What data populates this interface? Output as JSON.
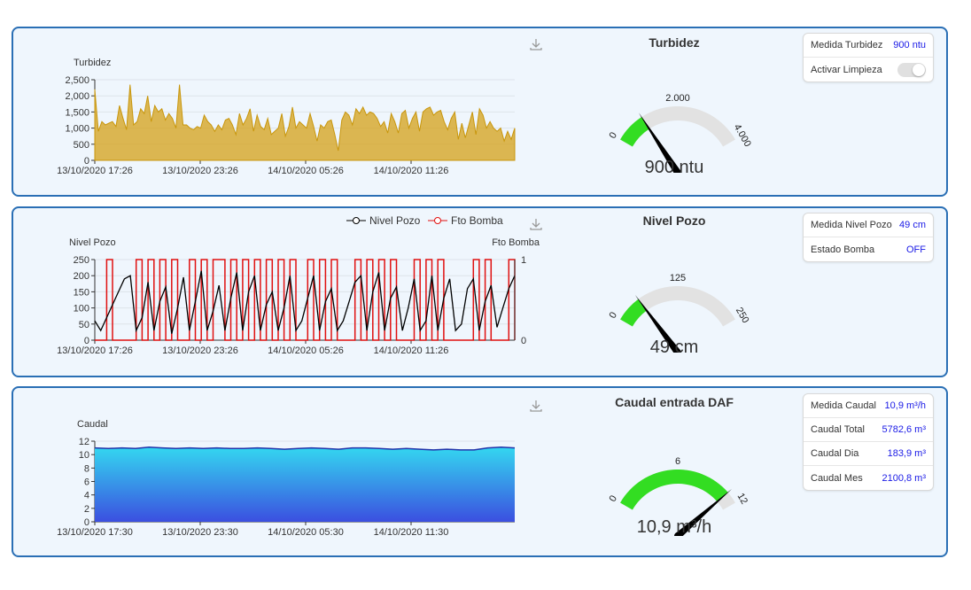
{
  "panels": [
    {
      "chart_data": {
        "type": "area",
        "title": "",
        "ylabel": "Turbidez",
        "ylim": [
          0,
          2500
        ],
        "yticks": [
          "0",
          "500",
          "1,000",
          "1,500",
          "2,000",
          "2,500"
        ],
        "xticks": [
          "13/10/2020 17:26",
          "13/10/2020 23:26",
          "14/10/2020 05:26",
          "14/10/2020 11:26"
        ],
        "series": [
          {
            "name": "Turbidez",
            "color": "#d4a017",
            "values": [
              2200,
              900,
              1200,
              1100,
              1150,
              1200,
              1050,
              1700,
              1300,
              950,
              2350,
              1100,
              1200,
              1600,
              1450,
              2000,
              1200,
              1700,
              1500,
              1600,
              1250,
              1450,
              1300,
              1000,
              2350,
              1100,
              1100,
              1000,
              950,
              1050,
              1000,
              1400,
              1200,
              1100,
              900,
              1100,
              950,
              1250,
              1300,
              1100,
              800,
              1450,
              1100,
              1300,
              1600,
              900,
              1400,
              1050,
              950,
              1300,
              800,
              900,
              1000,
              1450,
              750,
              1050,
              1650,
              1000,
              1200,
              1100,
              1000,
              1450,
              1050,
              600,
              1100,
              1000,
              1200,
              1250,
              800,
              300,
              1250,
              1500,
              1400,
              1100,
              1600,
              1450,
              1650,
              1400,
              1500,
              1450,
              1300,
              1050,
              1200,
              850,
              1450,
              1200,
              850,
              1450,
              1550,
              1000,
              1300,
              1500,
              900,
              1500,
              1600,
              1650,
              1400,
              1500,
              1550,
              1200,
              950,
              1300,
              1500,
              650,
              1150,
              700,
              1100,
              1500,
              800,
              1600,
              1400,
              1000,
              1200,
              1000,
              900,
              1000,
              600,
              900,
              650,
              1000
            ]
          }
        ]
      },
      "gauge": {
        "title": "Turbidez",
        "min_label": "0",
        "mid_label": "2.000",
        "max_label": "4.000",
        "value": 900,
        "min": 0,
        "max": 4000,
        "value_text": "900 ntu"
      },
      "info": [
        {
          "label": "Medida Turbidez",
          "value": "900 ntu",
          "kind": "text"
        },
        {
          "label": "Activar Limpieza",
          "value": "",
          "kind": "toggle"
        }
      ]
    },
    {
      "chart_data": {
        "type": "line",
        "title": "",
        "ylabel": "Nivel Pozo",
        "ylabel_right": "Fto Bomba",
        "ylim": [
          0,
          250
        ],
        "yticks": [
          "0",
          "50",
          "100",
          "150",
          "200",
          "250"
        ],
        "yticks_right": [
          "0",
          "1"
        ],
        "xticks": [
          "13/10/2020 17:26",
          "13/10/2020 23:26",
          "14/10/2020 05:26",
          "14/10/2020 11:26"
        ],
        "legend": "top-right",
        "series": [
          {
            "name": "Nivel Pozo",
            "color": "#000000",
            "values": [
              60,
              30,
              70,
              110,
              150,
              190,
              200,
              30,
              70,
              180,
              30,
              120,
              165,
              20,
              100,
              195,
              30,
              120,
              215,
              30,
              90,
              170,
              30,
              130,
              210,
              30,
              150,
              200,
              30,
              110,
              150,
              30,
              100,
              200,
              30,
              60,
              130,
              200,
              30,
              120,
              160,
              30,
              60,
              120,
              180,
              200,
              30,
              150,
              210,
              30,
              130,
              165,
              30,
              100,
              190,
              30,
              60,
              200,
              30,
              130,
              190,
              30,
              50,
              160,
              190,
              30,
              120,
              170,
              40,
              100,
              160,
              200
            ]
          },
          {
            "name": "Fto Bomba",
            "color": "#e01010",
            "values": [
              0,
              0,
              1,
              0,
              0,
              0,
              0,
              1,
              0,
              1,
              0,
              1,
              0,
              1,
              0,
              0,
              1,
              0,
              1,
              0,
              1,
              1,
              0,
              1,
              0,
              1,
              0,
              1,
              0,
              1,
              0,
              1,
              0,
              1,
              0,
              0,
              1,
              0,
              1,
              0,
              1,
              0,
              0,
              0,
              1,
              0,
              1,
              0,
              1,
              0,
              1,
              0,
              0,
              0,
              1,
              0,
              1,
              0,
              1,
              0,
              0,
              0,
              0,
              0,
              1,
              0,
              1,
              0,
              0,
              0,
              1,
              0
            ]
          }
        ]
      },
      "gauge": {
        "title": "Nivel Pozo",
        "min_label": "0",
        "mid_label": "125",
        "max_label": "250",
        "value": 49,
        "min": 0,
        "max": 250,
        "value_text": "49 cm"
      },
      "info": [
        {
          "label": "Medida Nivel Pozo",
          "value": "49 cm",
          "kind": "text"
        },
        {
          "label": "Estado Bomba",
          "value": "OFF",
          "kind": "text"
        }
      ]
    },
    {
      "chart_data": {
        "type": "area",
        "title": "",
        "ylabel": "Caudal",
        "ylim": [
          0,
          12
        ],
        "yticks": [
          "0",
          "2",
          "4",
          "6",
          "8",
          "10",
          "12"
        ],
        "xticks": [
          "13/10/2020 17:30",
          "13/10/2020 23:30",
          "14/10/2020 05:30",
          "14/10/2020 11:30"
        ],
        "series": [
          {
            "name": "Caudal",
            "color": "#2244cc",
            "values": [
              11.0,
              10.9,
              11.0,
              10.9,
              11.1,
              11.0,
              10.9,
              11.0,
              10.9,
              11.0,
              10.9,
              10.9,
              11.0,
              10.9,
              10.8,
              10.9,
              11.0,
              10.9,
              10.8,
              11.0,
              11.0,
              10.9,
              10.8,
              10.9,
              10.8,
              10.7,
              10.8,
              10.7,
              10.7,
              11.0,
              11.1,
              11.0
            ]
          }
        ]
      },
      "gauge": {
        "title": "Caudal entrada DAF",
        "min_label": "0",
        "mid_label": "6",
        "max_label": "12",
        "value": 10.9,
        "min": 0,
        "max": 12,
        "value_text": "10,9 m³/h"
      },
      "info": [
        {
          "label": "Medida Caudal",
          "value": "10,9 m³/h",
          "kind": "text"
        },
        {
          "label": "Caudal Total",
          "value": "5782,6 m³",
          "kind": "text"
        },
        {
          "label": "Caudal Dia",
          "value": "183,9 m³",
          "kind": "text"
        },
        {
          "label": "Caudal Mes",
          "value": "2100,8 m³",
          "kind": "text"
        }
      ]
    }
  ]
}
